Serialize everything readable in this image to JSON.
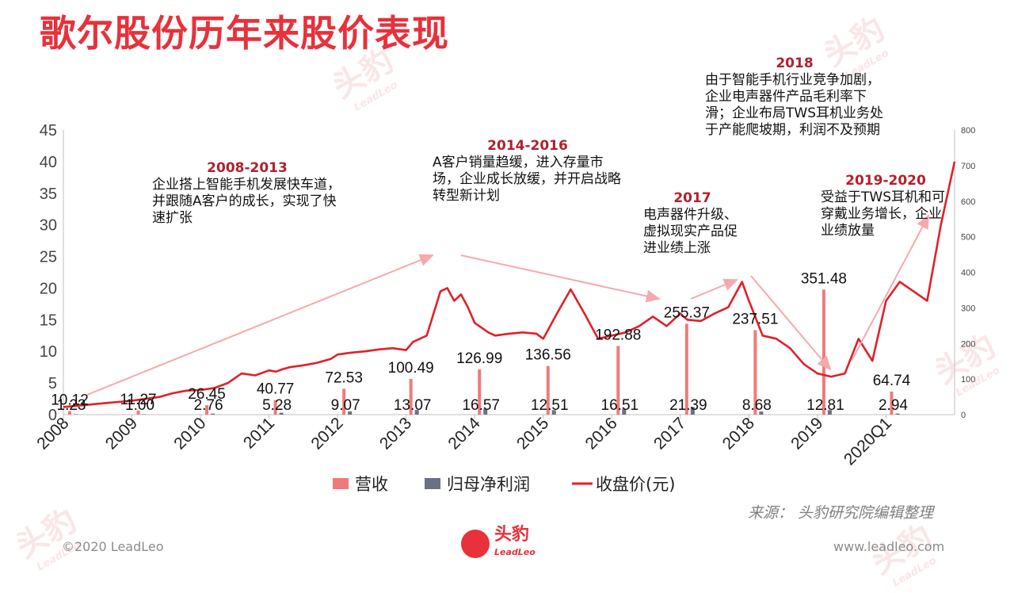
{
  "title": "歌尔股份历年来股价表现",
  "annotations": [
    {
      "year": "2008-2013",
      "text": "企业搭上智能手机发展快车道，并跟随A客户的成长，实现了快速扩张"
    },
    {
      "year": "2014-2016",
      "text": "A客户销量趋缓，进入存量市场，企业成长放缓，并开启战略转型新计划"
    },
    {
      "year": "2017",
      "text": "电声器件升级、虚拟现实产品促进业绩上涨"
    },
    {
      "year": "2018",
      "text": "由于智能手机行业竞争加剧，企业电声器件产品毛利率下滑；企业布局TWS耳机业务处于产能爬坡期，利润不及预期"
    },
    {
      "year": "2019-2020",
      "text": "受益于TWS耳机和可穿戴业务增长，企业业绩放量"
    }
  ],
  "source": "来源：  头豹研究院编辑整理",
  "footer": {
    "copyright": "©2020 LeadLeo",
    "website": "www.leadleo.com",
    "logo_text": "头豹",
    "logo_sub": "LeadLeo"
  },
  "watermark": {
    "text": "头豹",
    "sub": "LeadLeo"
  },
  "chart_data": {
    "type": "bar",
    "categories": [
      "2008",
      "2009",
      "2010",
      "2011",
      "2012",
      "2013",
      "2014",
      "2015",
      "2016",
      "2017",
      "2018",
      "2019",
      "2020Q1"
    ],
    "left_axis": {
      "ticks": [
        0,
        5,
        10,
        15,
        20,
        25,
        30,
        35,
        40,
        45
      ],
      "range": [
        0,
        45
      ]
    },
    "right_axis": {
      "ticks": [
        0,
        100,
        200,
        300,
        400,
        500,
        600,
        700,
        800
      ],
      "range": [
        0,
        800
      ]
    },
    "series": [
      {
        "name": "营收",
        "axis": "right",
        "color": "#f07a7a",
        "values": [
          10.12,
          11.27,
          26.45,
          40.77,
          72.53,
          100.49,
          126.99,
          136.56,
          192.88,
          255.37,
          237.51,
          351.48,
          64.74
        ]
      },
      {
        "name": "归母净利润",
        "axis": "right",
        "color": "#6a7182",
        "values": [
          1.23,
          1.0,
          2.76,
          5.28,
          9.07,
          13.07,
          16.57,
          12.51,
          16.51,
          21.39,
          8.68,
          12.81,
          2.94
        ]
      },
      {
        "name": "收盘价(元)",
        "axis": "left",
        "type": "line",
        "color": "#e0202a",
        "x": [
          0,
          0.2,
          0.4,
          0.6,
          0.8,
          1,
          1.2,
          1.4,
          1.6,
          1.8,
          2,
          2.2,
          2.4,
          2.6,
          2.8,
          3,
          3.1,
          3.2,
          3.3,
          3.5,
          3.7,
          3.9,
          4,
          4.2,
          4.4,
          4.6,
          4.8,
          5,
          5.1,
          5.2,
          5.3,
          5.5,
          5.6,
          5.7,
          5.8,
          5.9,
          6,
          6.2,
          6.3,
          6.5,
          6.7,
          6.9,
          7,
          7.2,
          7.4,
          7.6,
          7.8,
          8,
          8.2,
          8.4,
          8.6,
          8.8,
          9,
          9.1,
          9.3,
          9.5,
          9.7,
          9.9,
          10,
          10.2,
          10.4,
          10.6,
          10.8,
          11,
          11.2,
          11.4,
          11.6,
          11.8,
          12,
          12.2,
          12.4,
          12.6,
          12.8,
          13
        ],
        "y": [
          1.2,
          1.4,
          1.6,
          1.8,
          2,
          2.2,
          2.5,
          2.8,
          3.4,
          3.8,
          3.9,
          4.2,
          5,
          6.5,
          6.2,
          7,
          6.8,
          7.2,
          7.5,
          7.8,
          8.2,
          8.8,
          9.5,
          9.8,
          10,
          10.3,
          10.5,
          10.2,
          11.5,
          12,
          12.5,
          19.5,
          20,
          18,
          19,
          17,
          14.5,
          13,
          12.5,
          12.8,
          13,
          12.8,
          12,
          16,
          19.8,
          16,
          12,
          12.5,
          13,
          14,
          15.5,
          14,
          16,
          15,
          14.8,
          16,
          17,
          21,
          18,
          12.5,
          12,
          10.5,
          8,
          6.5,
          6,
          6.5,
          12,
          8.5,
          18,
          21,
          19.5,
          18,
          30,
          40
        ]
      }
    ],
    "legend": [
      "营收",
      "归母净利润",
      "收盘价(元)"
    ],
    "legend_position": "bottom"
  }
}
